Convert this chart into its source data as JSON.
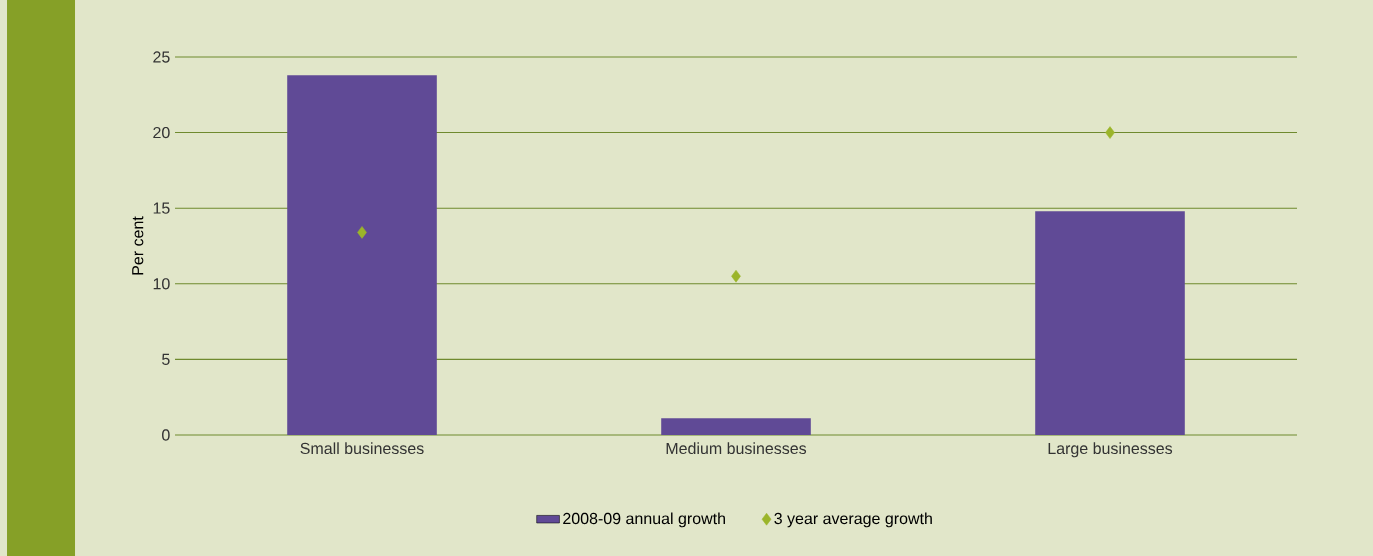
{
  "chart_data": {
    "type": "bar",
    "ylabel": "Per cent",
    "categories": [
      "Small businesses",
      "Medium businesses",
      "Large businesses"
    ],
    "series": [
      {
        "name": "2008-09 annual growth",
        "color": "#604a96",
        "values": [
          23.8,
          1.1,
          14.8
        ]
      },
      {
        "name": "3 year average growth",
        "type": "scatter",
        "color": "#9bb52a",
        "values": [
          13.4,
          10.5,
          20.0
        ]
      }
    ],
    "ylim": [
      0,
      25
    ],
    "yticks": [
      0,
      5,
      10,
      15,
      20,
      25
    ],
    "grid": "y",
    "legend": "bottom",
    "marker": "diamond"
  }
}
